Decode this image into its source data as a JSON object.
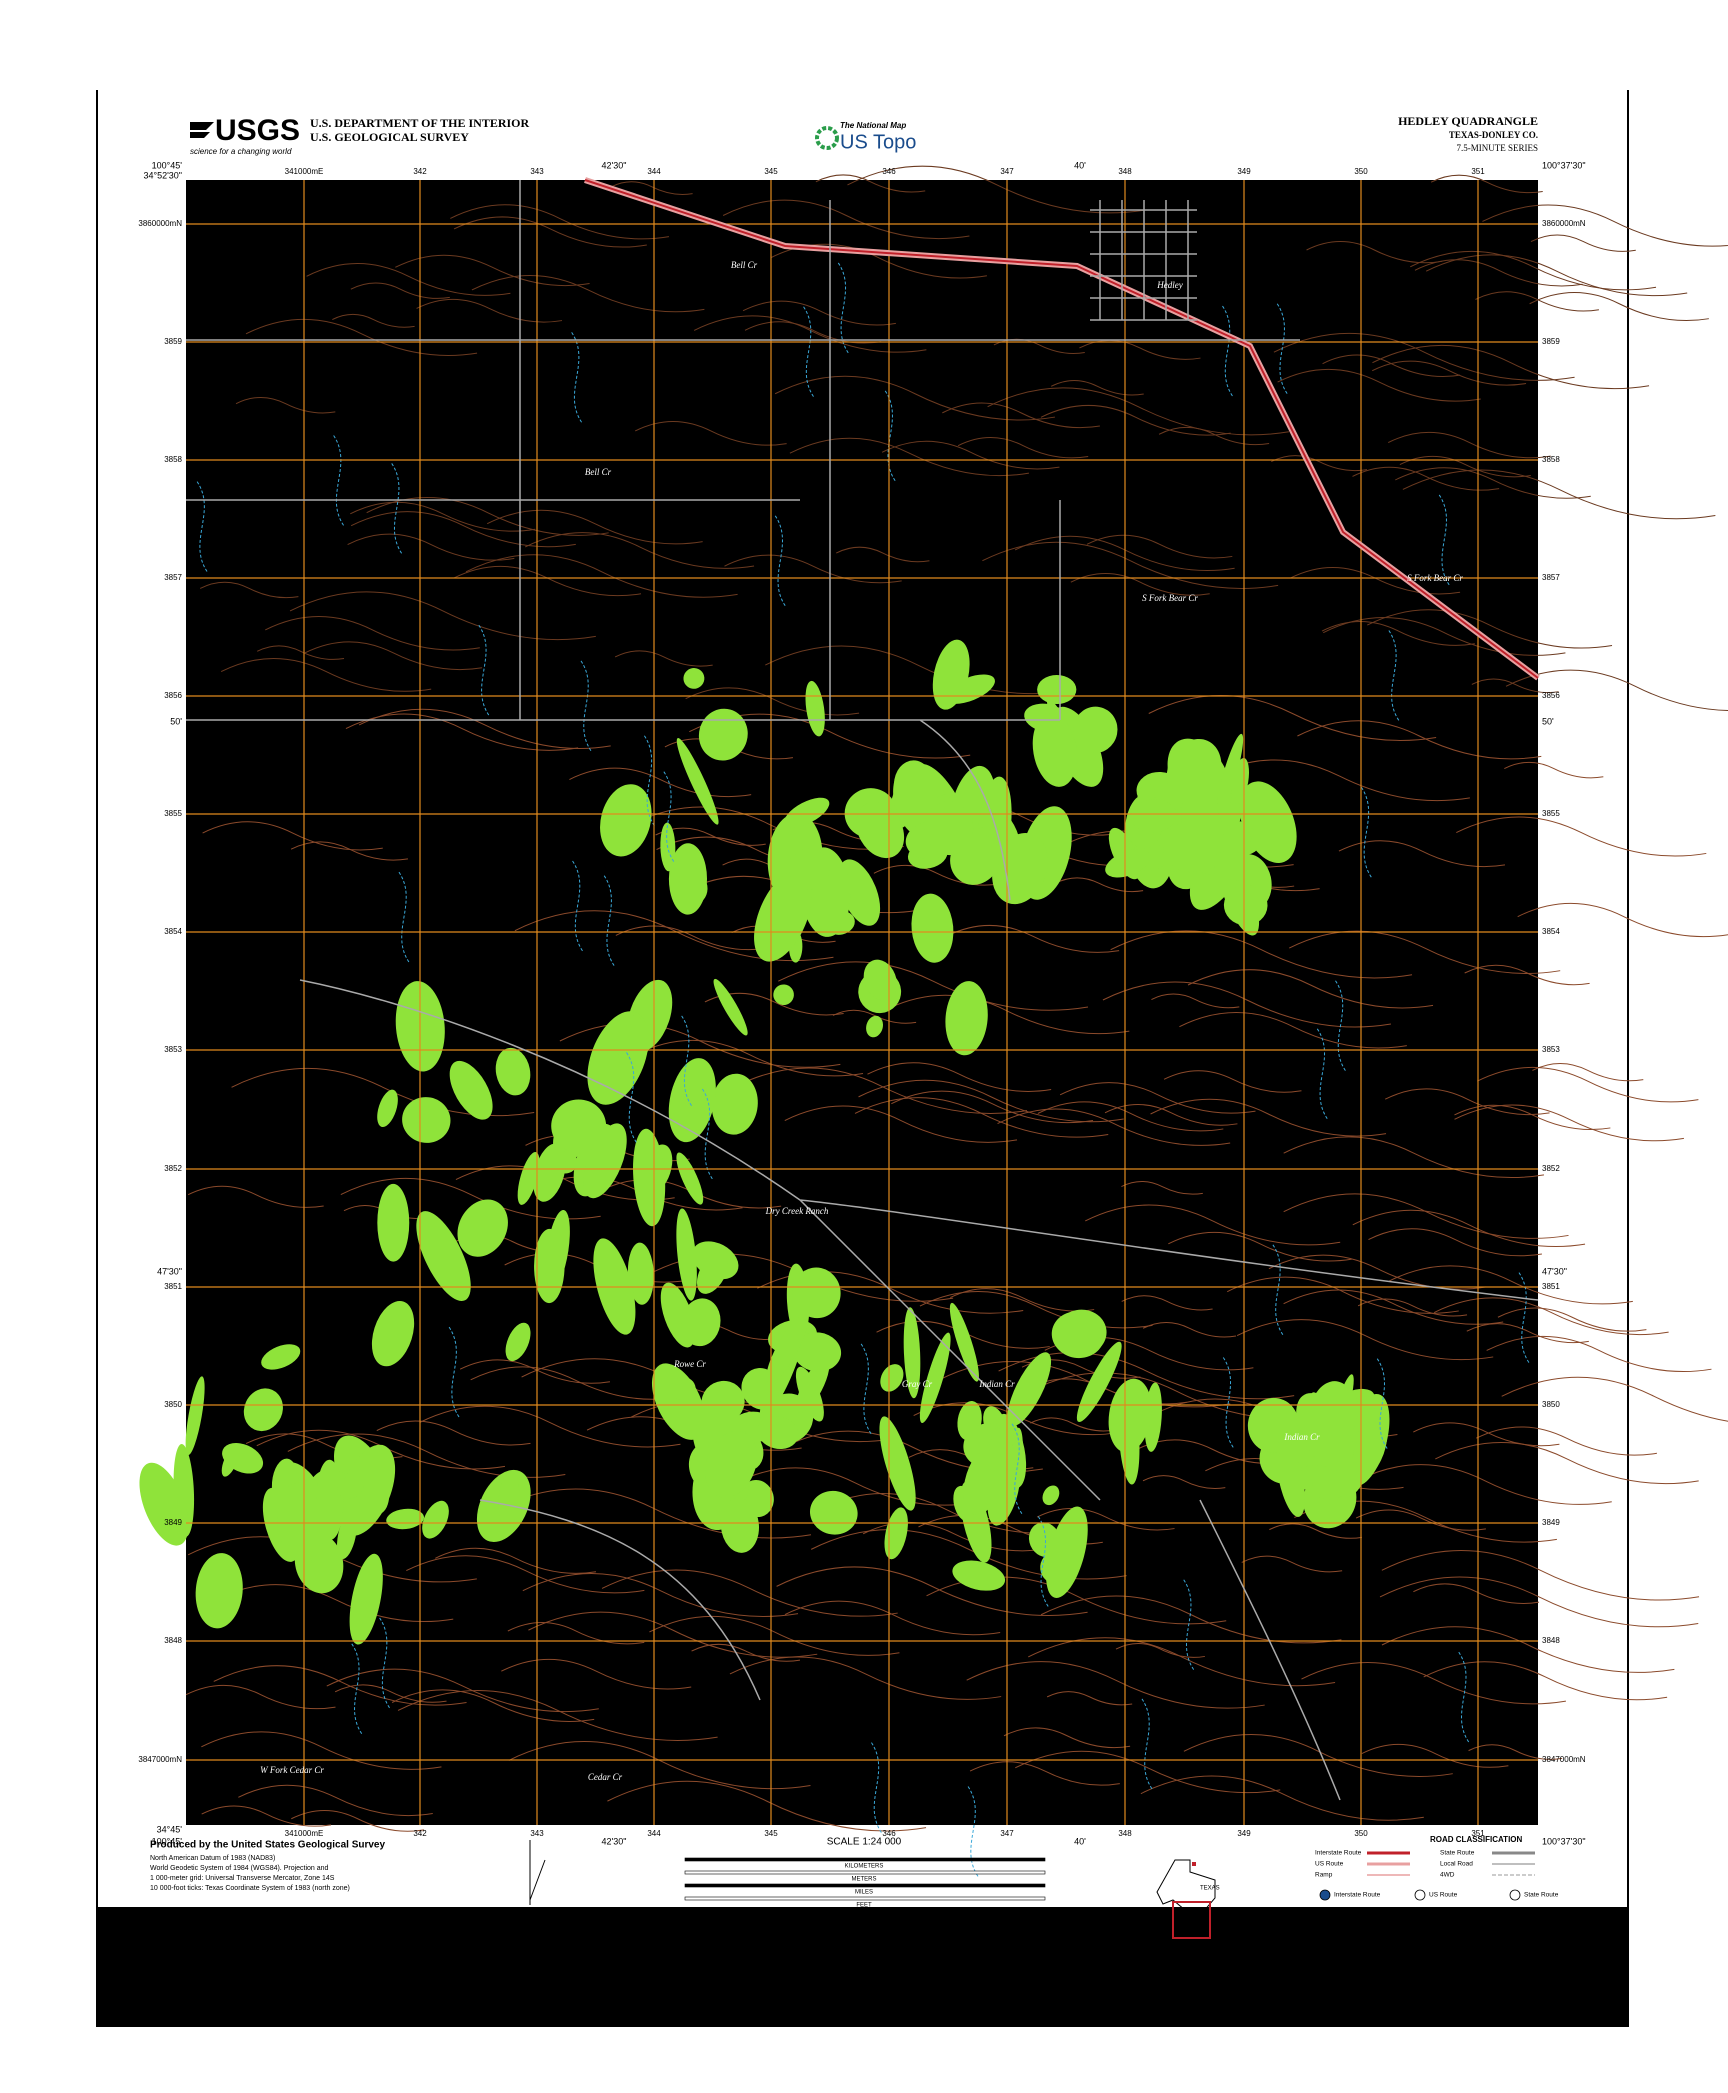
{
  "header": {
    "agency_logo": "USGS",
    "agency_tagline": "science for a changing world",
    "department": "U.S. DEPARTMENT OF THE INTERIOR",
    "survey": "U.S. GEOLOGICAL SURVEY",
    "national_map": "The National Map",
    "us_topo": "US Topo",
    "quadrangle": "HEDLEY QUADRANGLE",
    "state_county": "TEXAS-DONLEY CO.",
    "series": "7.5-MINUTE SERIES"
  },
  "map": {
    "corners": {
      "nw_lat": "34°52'30\"",
      "nw_lon": "100°45'",
      "ne_lon": "100°37'30\"",
      "sw_lat": "34°45'",
      "sw_lon": "100°45'",
      "se_lon": "100°37'30\""
    },
    "mid_lon_labels": [
      "42'30\"",
      "40'"
    ],
    "mid_lat_labels": [
      "50'",
      "47'30\""
    ],
    "easting_ticks": [
      "341000mE",
      "342",
      "343",
      "344",
      "345",
      "346",
      "347",
      "348",
      "349",
      "350",
      "351"
    ],
    "northing_ticks": [
      "3860000mN",
      "3859",
      "3858",
      "3857",
      "3856",
      "3855",
      "3854",
      "3853",
      "3852",
      "3851",
      "3850",
      "3849",
      "3848",
      "3847000mN"
    ],
    "places": [
      "Hedley",
      "Bell Cr",
      "Bell Cr",
      "S Fork Bear Cr",
      "S Fork Bear Cr",
      "Dry Creek Ranch",
      "Rowe Cr",
      "Gray Cr",
      "Indian Cr",
      "Indian Cr",
      "W Fork Cedar Cr",
      "Cedar Cr"
    ]
  },
  "footer": {
    "producer": "Produced by the United States Geological Survey",
    "datum_notes": [
      "North American Datum of 1983 (NAD83)",
      "World Geodetic System of 1984 (WGS84). Projection and",
      "1 000-meter grid: Universal Transverse Mercator, Zone 14S",
      "10 000-foot ticks: Texas Coordinate System of 1983 (north zone)"
    ],
    "scale": "SCALE 1:24 000",
    "scale_units": [
      "KILOMETERS",
      "METERS",
      "MILES",
      "FEET"
    ],
    "state_label": "TEXAS",
    "road_title": "ROAD CLASSIFICATION",
    "roads": [
      "Interstate Route",
      "US Route",
      "Ramp",
      "State Route",
      "Local Road",
      "4WD"
    ],
    "route_shields": [
      "Interstate Route",
      "US Route",
      "State Route"
    ]
  }
}
